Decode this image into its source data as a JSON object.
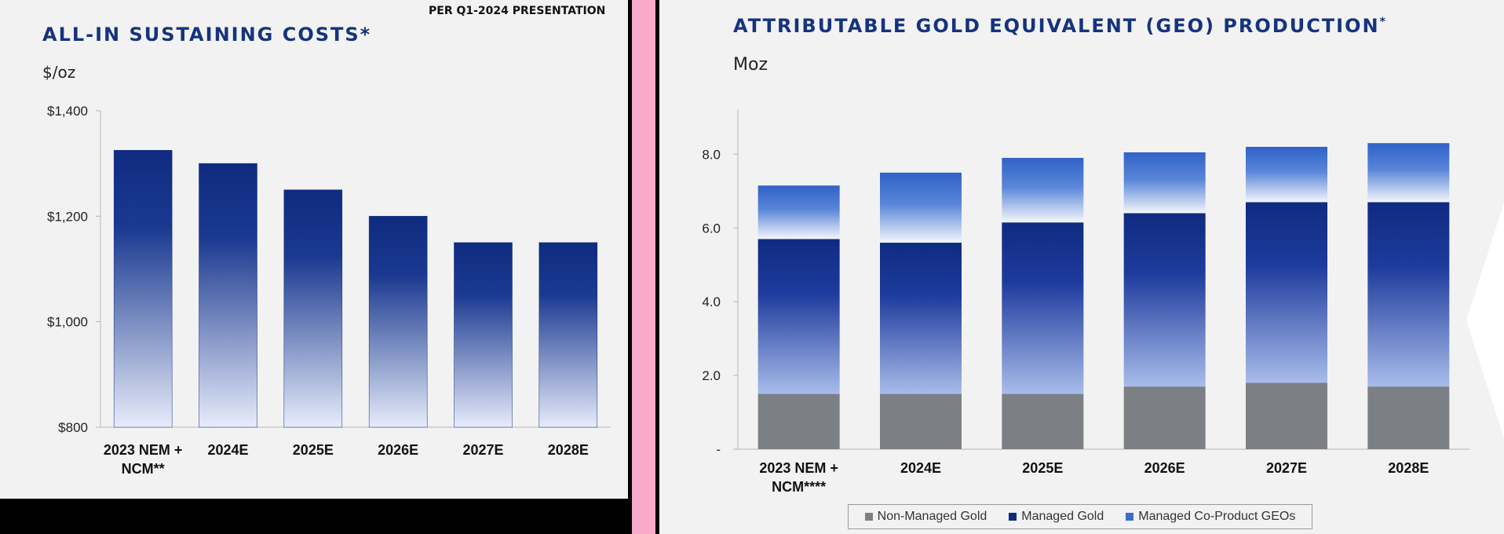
{
  "source_note": "PER Q1-2024 PRESENTATION",
  "colors": {
    "navy": "#0f2b80",
    "light": "#e6ebfa",
    "blue": "#3c6bd0",
    "grey": "#7c8085",
    "title": "#15337f"
  },
  "chart_data": [
    {
      "type": "bar",
      "title": "ALL-IN SUSTAINING COSTS*",
      "ylabel": "$/oz",
      "xlabel": "",
      "categories": [
        "2023 NEM + NCM**",
        "2024E",
        "2025E",
        "2026E",
        "2027E",
        "2028E"
      ],
      "category_lines": [
        [
          "2023 NEM +",
          "NCM**"
        ],
        [
          "2024E"
        ],
        [
          "2025E"
        ],
        [
          "2026E"
        ],
        [
          "2027E"
        ],
        [
          "2028E"
        ]
      ],
      "values": [
        1325,
        1300,
        1250,
        1200,
        1150,
        1150
      ],
      "ylim": [
        800,
        1400
      ],
      "yticks": [
        800,
        1000,
        1200,
        1400
      ],
      "ytick_labels": [
        "$800",
        "$1,000",
        "$1,200",
        "$1,400"
      ],
      "grid": false
    },
    {
      "type": "bar",
      "stacked": true,
      "title": "ATTRIBUTABLE GOLD EQUIVALENT (GEO) PRODUCTION",
      "title_mark": "*",
      "ylabel": "Moz",
      "xlabel": "",
      "categories": [
        "2023 NEM + NCM****",
        "2024E",
        "2025E",
        "2026E",
        "2027E",
        "2028E"
      ],
      "category_lines": [
        [
          "2023 NEM +",
          "NCM****"
        ],
        [
          "2024E"
        ],
        [
          "2025E"
        ],
        [
          "2026E"
        ],
        [
          "2027E"
        ],
        [
          "2028E"
        ]
      ],
      "series": [
        {
          "name": "Non-Managed Gold",
          "values": [
            1.5,
            1.5,
            1.5,
            1.7,
            1.8,
            1.7
          ]
        },
        {
          "name": "Managed Gold",
          "values": [
            4.2,
            4.1,
            4.65,
            4.7,
            4.9,
            5.0
          ]
        },
        {
          "name": "Managed Co-Product GEOs",
          "values": [
            1.45,
            1.9,
            1.75,
            1.65,
            1.5,
            1.6
          ]
        }
      ],
      "ylim": [
        0,
        9.2
      ],
      "yticks": [
        0,
        2,
        4,
        6,
        8
      ],
      "ytick_labels": [
        "-",
        "2.0",
        "4.0",
        "6.0",
        "8.0"
      ],
      "legend_position": "bottom",
      "grid": false
    }
  ]
}
